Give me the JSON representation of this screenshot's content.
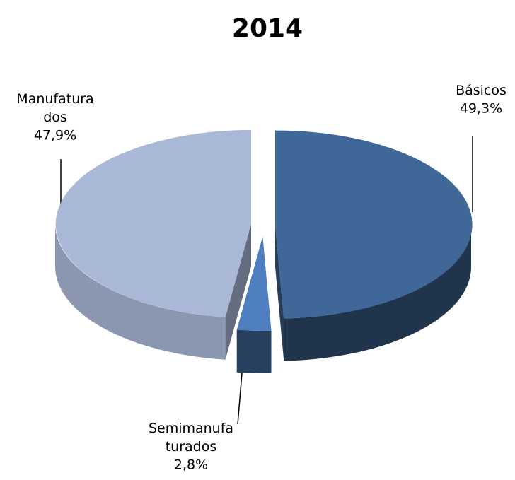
{
  "chart_data": {
    "type": "pie3d",
    "title": "2014",
    "categories": [
      "Básicos",
      "Semimanufaturados",
      "Manufaturados"
    ],
    "series": [
      {
        "values": [
          49.3,
          2.8,
          47.9
        ],
        "value_labels": [
          "49,3%",
          "2,8%",
          "47,9%"
        ],
        "colors": [
          "#3f6797",
          "#4f7fc0",
          "#a9b8d7"
        ]
      }
    ]
  }
}
